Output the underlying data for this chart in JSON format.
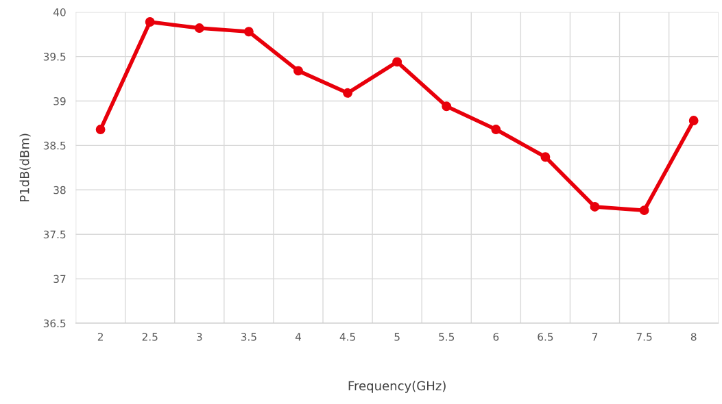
{
  "chart_data": {
    "type": "line",
    "xlabel": "Frequency(GHz)",
    "ylabel": "P1dB(dBm)",
    "categories": [
      "2",
      "2.5",
      "3",
      "3.5",
      "4",
      "4.5",
      "5",
      "5.5",
      "6",
      "6.5",
      "7",
      "7.5",
      "8"
    ],
    "series": [
      {
        "color": "#e8000b",
        "values": [
          38.68,
          39.89,
          39.82,
          39.78,
          39.34,
          39.09,
          39.44,
          38.94,
          38.68,
          38.37,
          37.81,
          37.77,
          38.78
        ]
      }
    ],
    "ylim": [
      36.5,
      40
    ],
    "yticks": [
      36.5,
      37,
      37.5,
      38,
      38.5,
      39,
      39.5,
      40
    ],
    "grid": true,
    "marker": "circle",
    "line_style": "solid"
  }
}
